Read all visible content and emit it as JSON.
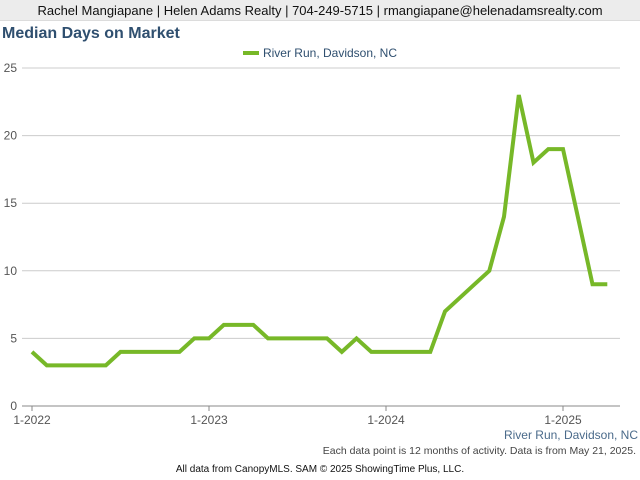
{
  "header": {
    "contact_line": "Rachel Mangiapane | Helen Adams Realty | 704-249-5715 | rmangiapane@helenadamsrealty.com"
  },
  "colors": {
    "series_line": "#77b828",
    "grid": "#cccccc",
    "axis": "#555555",
    "title": "#2f4f6f"
  },
  "chart_data": {
    "type": "line",
    "title": "Median Days on Market",
    "xlabel": "",
    "ylabel": "",
    "ylim": [
      0,
      25
    ],
    "yticks": [
      "0",
      "5",
      "10",
      "15",
      "20",
      "25"
    ],
    "xticks": [
      "1-2022",
      "1-2023",
      "1-2024",
      "1-2025"
    ],
    "legend_placement": "top-center",
    "grid": true,
    "x": [
      "2022-01",
      "2022-02",
      "2022-03",
      "2022-04",
      "2022-05",
      "2022-06",
      "2022-07",
      "2022-08",
      "2022-09",
      "2022-10",
      "2022-11",
      "2022-12",
      "2023-01",
      "2023-02",
      "2023-03",
      "2023-04",
      "2023-05",
      "2023-06",
      "2023-07",
      "2023-08",
      "2023-09",
      "2023-10",
      "2023-11",
      "2023-12",
      "2024-01",
      "2024-02",
      "2024-03",
      "2024-04",
      "2024-05",
      "2024-06",
      "2024-07",
      "2024-08",
      "2024-09",
      "2024-10",
      "2024-11",
      "2024-12",
      "2025-01",
      "2025-02",
      "2025-03",
      "2025-04"
    ],
    "series": [
      {
        "name": "River Run, Davidson, NC",
        "values": [
          4,
          3,
          3,
          3,
          3,
          3,
          4,
          4,
          4,
          4,
          4,
          5,
          5,
          6,
          6,
          6,
          5,
          5,
          5,
          5,
          5,
          4,
          5,
          4,
          4,
          4,
          4,
          4,
          7,
          8,
          9,
          10,
          14,
          23,
          18,
          19,
          19,
          14,
          9,
          9
        ]
      }
    ]
  },
  "region_label": "River Run, Davidson, NC",
  "note": "Each data point is 12 months of activity. Data is from May 21, 2025.",
  "footer": "All data from CanopyMLS. SAM © 2025 ShowingTime Plus, LLC."
}
